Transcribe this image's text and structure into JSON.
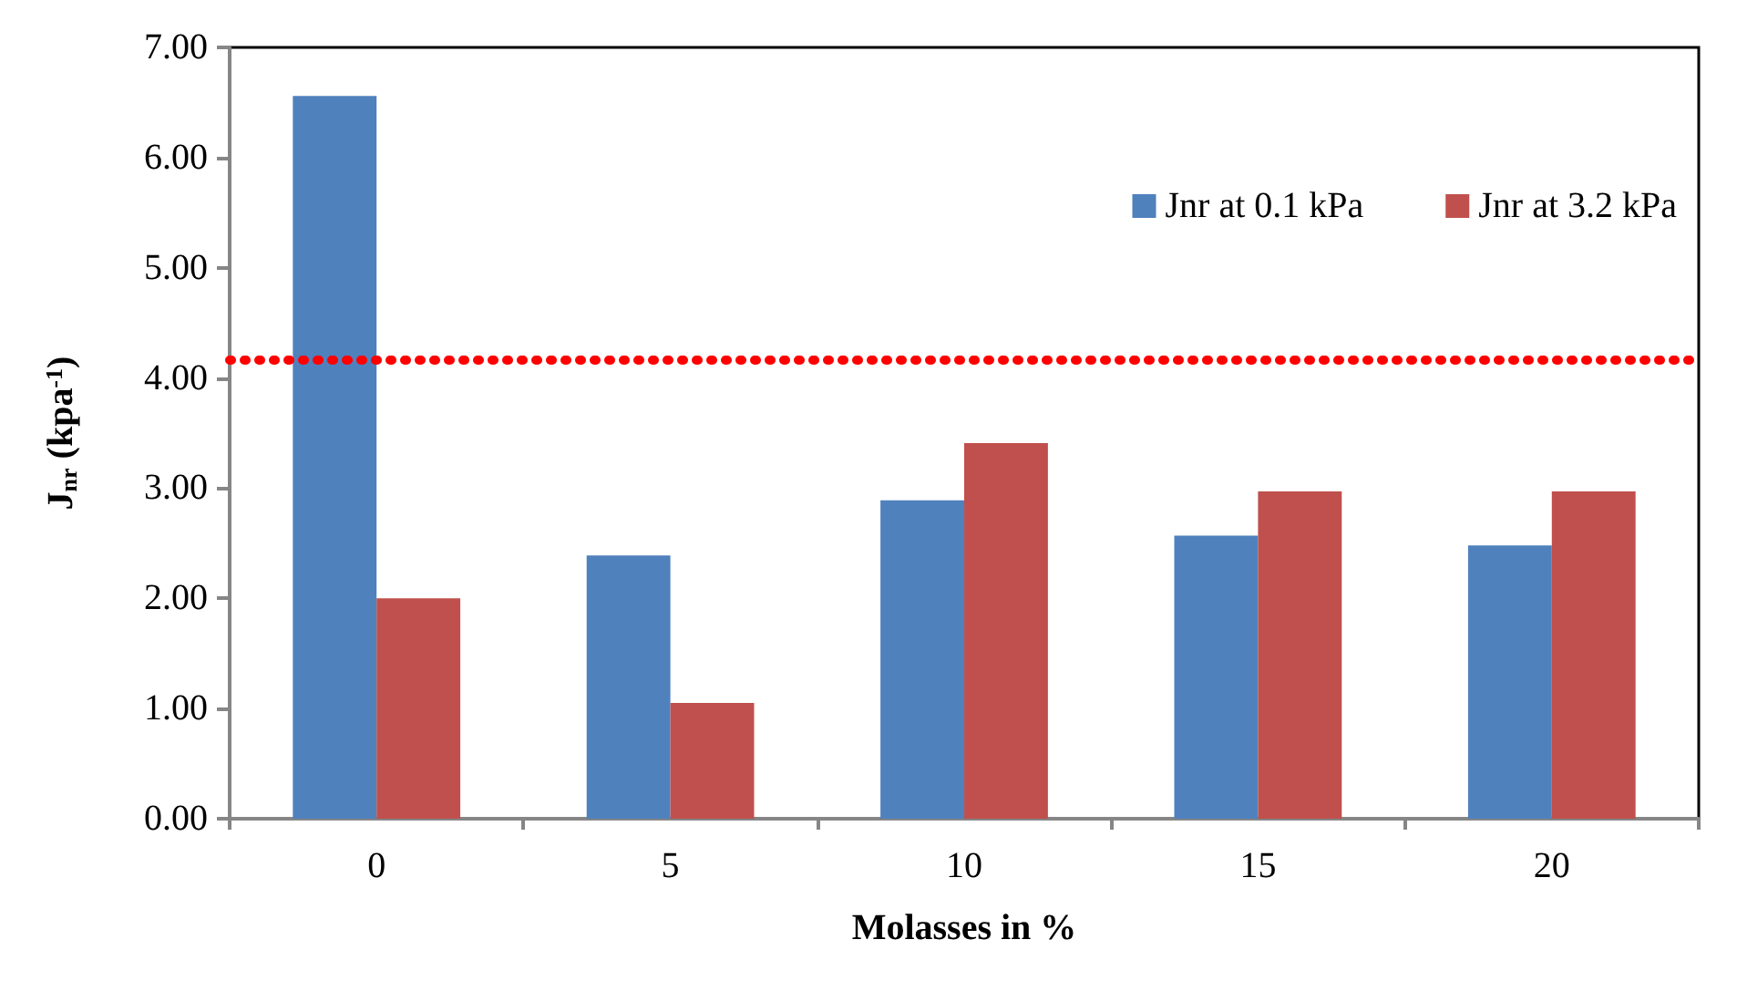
{
  "chart_data": {
    "type": "bar",
    "xlabel": "Molasses in %",
    "ylabel": "J$_{nr}$ (kpa$^{-1}$)",
    "categories": [
      "0",
      "5",
      "10",
      "15",
      "20"
    ],
    "series": [
      {
        "name": "Jnr at 0.1 kPa",
        "color": "#4f81bd",
        "values": [
          6.56,
          2.39,
          2.89,
          2.57,
          2.48
        ]
      },
      {
        "name": "Jnr at 3.2 kPa",
        "color": "#c0504d",
        "values": [
          2.0,
          1.05,
          3.41,
          2.97,
          2.97
        ]
      }
    ],
    "ylim": [
      0,
      7
    ],
    "yticks": [
      {
        "value": 0,
        "label": "0.00"
      },
      {
        "value": 1,
        "label": "1.00"
      },
      {
        "value": 2,
        "label": "2.00"
      },
      {
        "value": 3,
        "label": "3.00"
      },
      {
        "value": 4,
        "label": "4.00"
      },
      {
        "value": 5,
        "label": "5.00"
      },
      {
        "value": 6,
        "label": "6.00"
      },
      {
        "value": 7,
        "label": "7.00"
      }
    ],
    "ref_lines": [
      {
        "axis": "y",
        "value": 4.17,
        "color": "#ff0000",
        "line_style": "dotted"
      }
    ],
    "grid": false,
    "legend": "top right"
  }
}
